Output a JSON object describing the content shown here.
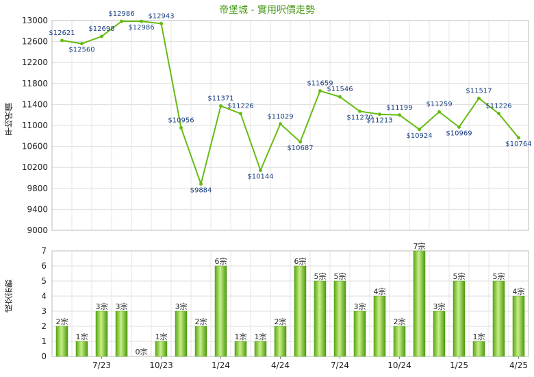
{
  "chart_data": [
    {
      "type": "line",
      "title": "帝堡城 - 實用呎價走勢",
      "ylabel": "平均呎價",
      "ylim": [
        9000,
        13000
      ],
      "yticks": [
        "13000",
        "12600",
        "12200",
        "11800",
        "11400",
        "11000",
        "10600",
        "10200",
        "9800",
        "9400",
        "9000"
      ],
      "grid": true,
      "color": "#66bb11",
      "values": [
        12621,
        12560,
        12698,
        12986,
        12986,
        12943,
        10956,
        9884,
        11371,
        11226,
        10144,
        11029,
        10687,
        11659,
        11546,
        11270,
        11213,
        11199,
        10924,
        11259,
        10969,
        11517,
        11226,
        10764
      ],
      "labels": [
        "$12621",
        "$12560",
        "$12698",
        "$12986",
        "$12986",
        "$12943",
        "$10956",
        "$9884",
        "$11371",
        "$11226",
        "$10144",
        "$11029",
        "$10687",
        "$11659",
        "$11546",
        "$11270",
        "$11213",
        "$11199",
        "$10924",
        "$11259",
        "$10969",
        "$11517",
        "$11226",
        "$10764"
      ]
    },
    {
      "type": "bar",
      "ylabel": "成交宗數",
      "ylim": [
        0,
        7
      ],
      "yticks": [
        "7",
        "6",
        "5",
        "4",
        "3",
        "2",
        "1",
        "0"
      ],
      "grid": true,
      "color": "#66bb11",
      "values": [
        2,
        1,
        3,
        3,
        0,
        1,
        3,
        2,
        6,
        1,
        1,
        2,
        6,
        5,
        5,
        3,
        4,
        2,
        7,
        3,
        5,
        1,
        5,
        4
      ],
      "labels": [
        "2宗",
        "1宗",
        "3宗",
        "3宗",
        "0宗",
        "1宗",
        "3宗",
        "2宗",
        "6宗",
        "1宗",
        "1宗",
        "2宗",
        "6宗",
        "5宗",
        "5宗",
        "3宗",
        "4宗",
        "2宗",
        "7宗",
        "3宗",
        "5宗",
        "1宗",
        "5宗",
        "4宗"
      ],
      "x_ticks": [
        {
          "index": 2,
          "label": "7/23"
        },
        {
          "index": 5,
          "label": "10/23"
        },
        {
          "index": 8,
          "label": "1/24"
        },
        {
          "index": 11,
          "label": "4/24"
        },
        {
          "index": 14,
          "label": "7/24"
        },
        {
          "index": 17,
          "label": "10/24"
        },
        {
          "index": 20,
          "label": "1/25"
        },
        {
          "index": 23,
          "label": "4/25"
        }
      ]
    }
  ]
}
